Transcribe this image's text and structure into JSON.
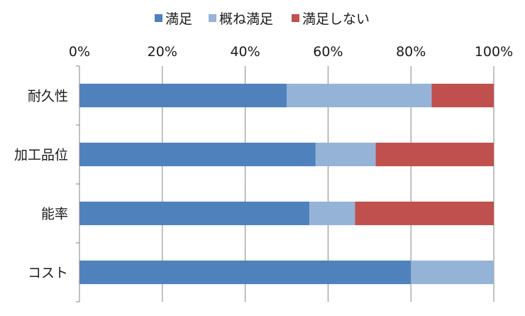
{
  "chart_data": {
    "type": "bar",
    "orientation": "horizontal",
    "stacked": true,
    "percent_stacked": true,
    "categories": [
      "耐久性",
      "加工品位",
      "能率",
      "コスト"
    ],
    "series": [
      {
        "name": "満足",
        "values": [
          50,
          57,
          55.5,
          80
        ],
        "color": "#4f81bd"
      },
      {
        "name": "概ね満足",
        "values": [
          35,
          14.5,
          11,
          20
        ],
        "color": "#95b3d7"
      },
      {
        "name": "満足しない",
        "values": [
          15,
          28.5,
          33.5,
          0
        ],
        "color": "#c0504d"
      }
    ],
    "xlim": [
      0,
      100
    ],
    "x_ticks": [
      "0%",
      "20%",
      "40%",
      "60%",
      "80%",
      "100%"
    ],
    "grid": true,
    "legend_position": "top",
    "title": "",
    "xlabel": "",
    "ylabel": ""
  }
}
